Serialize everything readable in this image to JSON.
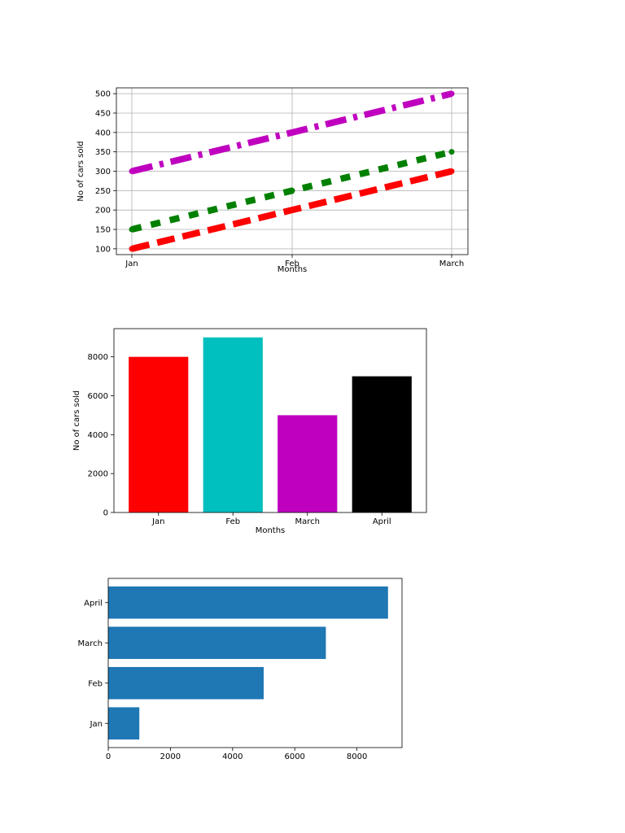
{
  "chart_data": [
    {
      "type": "line",
      "categories": [
        "Jan",
        "Feb",
        "March"
      ],
      "series": [
        {
          "values": [
            100,
            200,
            300
          ],
          "color": "#ff0000",
          "style": "dashed"
        },
        {
          "values": [
            150,
            250,
            350
          ],
          "color": "#008000",
          "style": "dotted"
        },
        {
          "values": [
            300,
            400,
            500
          ],
          "color": "#bf00bf",
          "style": "dashdot"
        }
      ],
      "xlabel": "Months",
      "ylabel": "No of cars sold",
      "yticks": [
        100,
        150,
        200,
        250,
        300,
        350,
        400,
        450,
        500
      ],
      "ylim": [
        85,
        515
      ],
      "grid": true
    },
    {
      "type": "bar",
      "categories": [
        "Jan",
        "Feb",
        "March",
        "April"
      ],
      "values": [
        8000,
        9000,
        5000,
        7000
      ],
      "colors": [
        "#ff0000",
        "#00bfbf",
        "#bf00bf",
        "#000000"
      ],
      "xlabel": "Months",
      "ylabel": "No of cars sold",
      "yticks": [
        0,
        2000,
        4000,
        6000,
        8000
      ],
      "ylim": [
        0,
        9450
      ],
      "grid": false
    },
    {
      "type": "bar",
      "orientation": "horizontal",
      "categories": [
        "Jan",
        "Feb",
        "March",
        "April"
      ],
      "values": [
        1000,
        5000,
        7000,
        9000
      ],
      "color": "#1f77b4",
      "xticks": [
        0,
        2000,
        4000,
        6000,
        8000
      ],
      "xlim": [
        0,
        9450
      ],
      "grid": false
    }
  ]
}
